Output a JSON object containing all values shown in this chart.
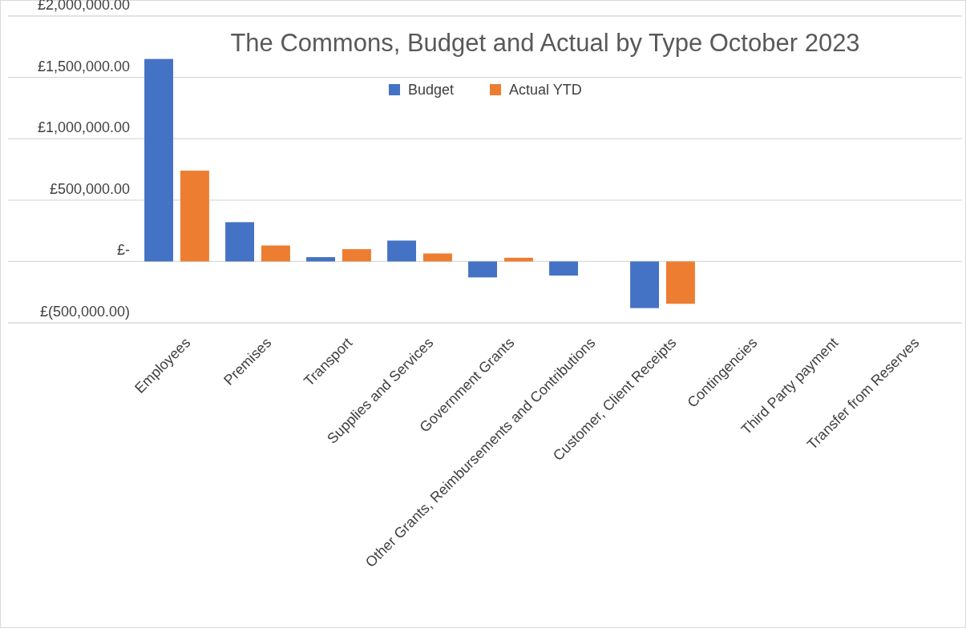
{
  "chart_data": {
    "type": "bar",
    "title": "The Commons, Budget and Actual by Type October 2023",
    "categories": [
      "Employees",
      "Premises",
      "Transport",
      "Supplies and Services",
      "Government Grants",
      "Other Grants, Reimbursements and Contributions",
      "Customer, Client Receipts",
      "Contingencies",
      "Third Party payment",
      "Transfer from Reserves"
    ],
    "series": [
      {
        "name": "Budget",
        "color": "#4472c4",
        "values": [
          1650000,
          320000,
          35000,
          170000,
          -130000,
          -115000,
          -380000,
          0,
          0,
          0
        ]
      },
      {
        "name": "Actual YTD",
        "color": "#ed7d31",
        "values": [
          740000,
          130000,
          100000,
          65000,
          30000,
          0,
          -345000,
          0,
          0,
          0
        ]
      }
    ],
    "ylim": [
      -500000,
      2000000
    ],
    "yticks": [
      {
        "value": -500000,
        "label": "£(500,000.00)"
      },
      {
        "value": 0,
        "label": "£-"
      },
      {
        "value": 500000,
        "label": "£500,000.00"
      },
      {
        "value": 1000000,
        "label": "£1,000,000.00"
      },
      {
        "value": 1500000,
        "label": "£1,500,000.00"
      },
      {
        "value": 2000000,
        "label": "£2,000,000.00"
      }
    ],
    "grid": "y",
    "legend": "top"
  }
}
